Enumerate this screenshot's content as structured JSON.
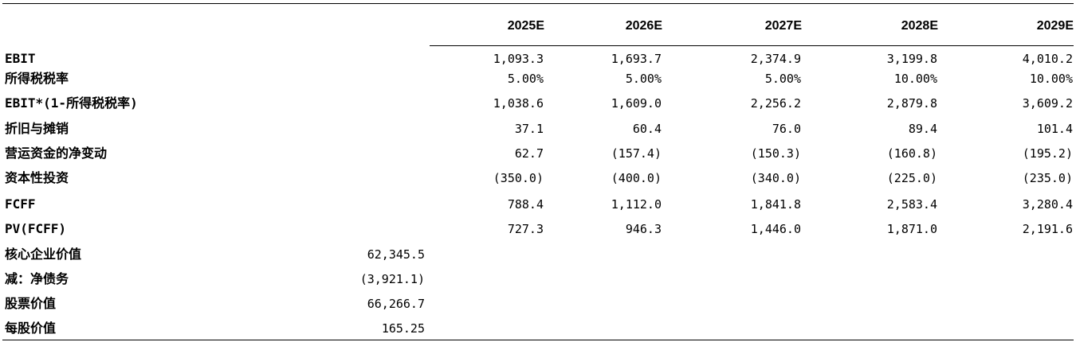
{
  "years": [
    "2025E",
    "2026E",
    "2027E",
    "2028E",
    "2029E"
  ],
  "rows": [
    {
      "label": "EBIT",
      "values": [
        "1,093.3",
        "1,693.7",
        "2,374.9",
        "3,199.8",
        "4,010.2"
      ]
    },
    {
      "label": "所得税税率",
      "values": [
        "5.00%",
        "5.00%",
        "5.00%",
        "10.00%",
        "10.00%"
      ]
    },
    {
      "label": "EBIT*(1-所得税税率)",
      "values": [
        "1,038.6",
        "1,609.0",
        "2,256.2",
        "2,879.8",
        "3,609.2"
      ]
    },
    {
      "label": "折旧与摊销",
      "values": [
        "37.1",
        "60.4",
        "76.0",
        "89.4",
        "101.4"
      ]
    },
    {
      "label": "营运资金的净变动",
      "values": [
        "62.7",
        "(157.4)",
        "(150.3)",
        "(160.8)",
        "(195.2)"
      ]
    },
    {
      "label": "资本性投资",
      "values": [
        "(350.0)",
        "(400.0)",
        "(340.0)",
        "(225.0)",
        "(235.0)"
      ]
    },
    {
      "label": "FCFF",
      "values": [
        "788.4",
        "1,112.0",
        "1,841.8",
        "2,583.4",
        "3,280.4"
      ]
    },
    {
      "label": "PV(FCFF)",
      "values": [
        "727.3",
        "946.3",
        "1,446.0",
        "1,871.0",
        "2,191.6"
      ]
    }
  ],
  "summary": [
    {
      "label": "核心企业价值",
      "value": "62,345.5"
    },
    {
      "label": "减：净债务",
      "value": "(3,921.1)"
    },
    {
      "label": "股票价值",
      "value": "66,266.7"
    },
    {
      "label": "每股价值",
      "value": "165.25"
    }
  ]
}
